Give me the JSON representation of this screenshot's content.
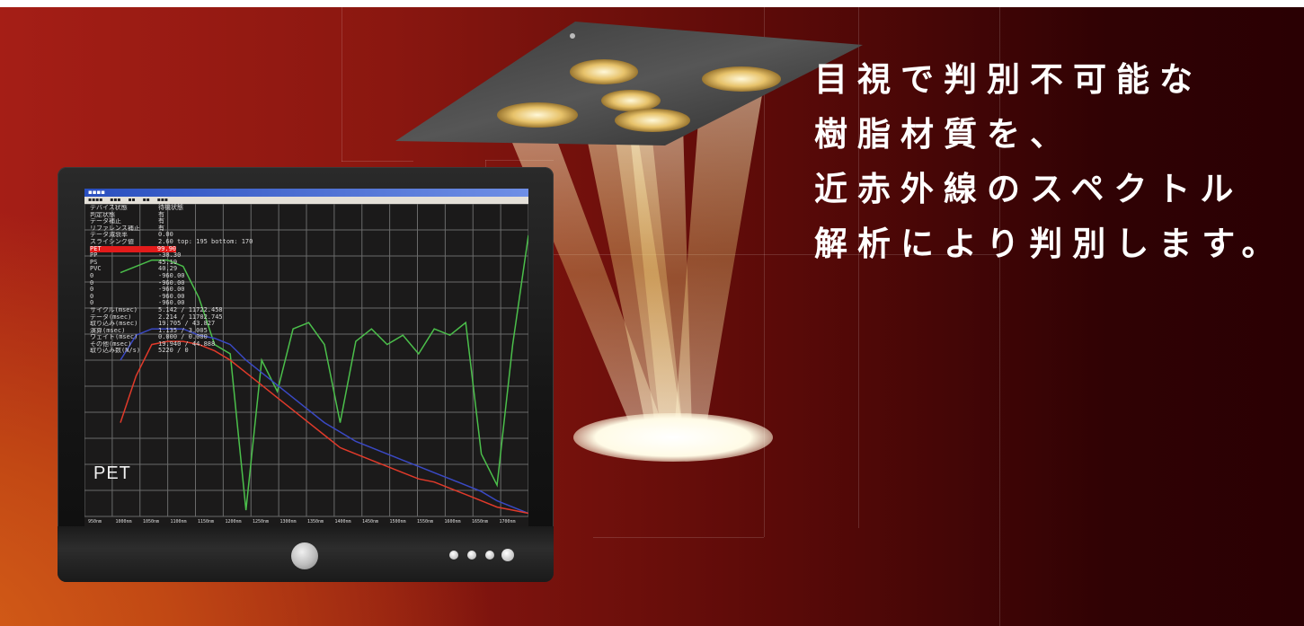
{
  "headline": {
    "lines": [
      "目視で判別不可能な",
      "樹脂材質を、",
      "近赤外線のスペクトル",
      "解析により判別します。"
    ],
    "color": "#ffffff"
  },
  "monitor": {
    "screen_label": "PET",
    "info_rows": [
      {
        "key": "デバイス状態",
        "value": "待機状態"
      },
      {
        "key": "判定状態",
        "value": "有"
      },
      {
        "key": "データ補正",
        "value": "有"
      },
      {
        "key": "リファレンス補正",
        "value": "有"
      },
      {
        "key": "データ減衰率",
        "value": "0.00"
      },
      {
        "key": "スライシング値",
        "value": "2.60 top: 195 bottom: 170"
      },
      {
        "key": "PET",
        "value": "99.90",
        "highlight": true
      },
      {
        "key": "PP",
        "value": "-30.30"
      },
      {
        "key": "PS",
        "value": "45.19"
      },
      {
        "key": "PVC",
        "value": "40.29"
      },
      {
        "key": "0",
        "value": "-960.00"
      },
      {
        "key": "0",
        "value": "-960.00"
      },
      {
        "key": "0",
        "value": "-960.00"
      },
      {
        "key": "0",
        "value": "-960.00"
      },
      {
        "key": "0",
        "value": "-960.00"
      },
      {
        "key": "サイクル(msec)",
        "value": "5.142 / 11722.458"
      },
      {
        "key": "データ(msec)",
        "value": "2.214 / 11702.745"
      },
      {
        "key": "取り込み(msec)",
        "value": "19.705 / 43.827"
      },
      {
        "key": "演算(msec)",
        "value": "1.135 / 3.005"
      },
      {
        "key": "ウェイト(msec)",
        "value": "0.000 / 0.000"
      },
      {
        "key": "その他(msec)",
        "value": "19.940 / 44.888"
      },
      {
        "key": "取り込み数(N/s)",
        "value": "5220 / 0"
      }
    ],
    "x_tick_labels": [
      "950nm",
      "1000nm",
      "1050nm",
      "1100nm",
      "1150nm",
      "1200nm",
      "1250nm",
      "1300nm",
      "1350nm",
      "1400nm",
      "1450nm",
      "1500nm",
      "1550nm",
      "1600nm",
      "1650nm",
      "1700nm"
    ]
  },
  "chart_data": {
    "type": "line",
    "title": "",
    "xlabel": "",
    "ylabel": "",
    "grid": true,
    "series": [
      {
        "color": "#4bbf4b",
        "values": [
          0.78,
          0.8,
          0.82,
          0.82,
          0.8,
          0.7,
          0.55,
          0.52,
          0.02,
          0.5,
          0.4,
          0.6,
          0.62,
          0.55,
          0.3,
          0.56,
          0.6,
          0.55,
          0.58,
          0.52,
          0.6,
          0.58,
          0.62,
          0.2,
          0.1,
          0.55,
          0.9
        ]
      },
      {
        "color": "#3a49c4",
        "values": [
          0.5,
          0.58,
          0.6,
          0.6,
          0.6,
          0.58,
          0.57,
          0.55,
          0.5,
          0.46,
          0.42,
          0.38,
          0.34,
          0.3,
          0.27,
          0.24,
          0.22,
          0.2,
          0.18,
          0.16,
          0.14,
          0.12,
          0.1,
          0.08,
          0.05,
          0.03,
          0.01
        ]
      },
      {
        "color": "#e03a2a",
        "values": [
          0.3,
          0.45,
          0.55,
          0.56,
          0.56,
          0.55,
          0.53,
          0.5,
          0.46,
          0.42,
          0.38,
          0.34,
          0.3,
          0.26,
          0.22,
          0.2,
          0.18,
          0.16,
          0.14,
          0.12,
          0.11,
          0.09,
          0.07,
          0.05,
          0.03,
          0.02,
          0.01
        ]
      }
    ]
  }
}
